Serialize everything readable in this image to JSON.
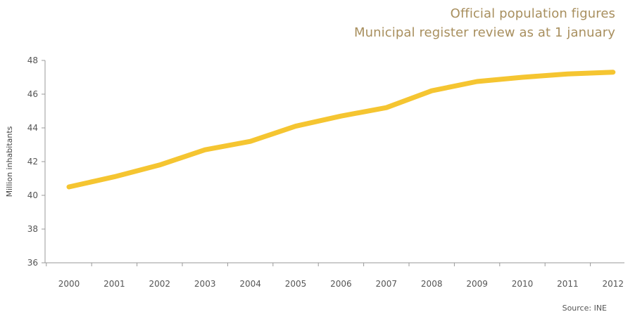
{
  "header": {
    "title_line1": "Official population figures",
    "title_line2": "Municipal register review as at 1 january"
  },
  "footer": {
    "source": "Source: INE"
  },
  "colors": {
    "line": "#f5c531",
    "title": "#a88f5e",
    "axis": "#999999",
    "text": "#555555"
  },
  "chart_data": {
    "type": "line",
    "title": "Official population figures",
    "subtitle": "Municipal register review as at 1 january",
    "xlabel": "",
    "ylabel": "Million inhabitants",
    "x": [
      "2000",
      "2001",
      "2002",
      "2003",
      "2004",
      "2005",
      "2006",
      "2007",
      "2008",
      "2009",
      "2010",
      "2011",
      "2012"
    ],
    "series": [
      {
        "values": [
          40.5,
          41.1,
          41.8,
          42.7,
          43.2,
          44.1,
          44.7,
          45.2,
          46.2,
          46.75,
          47.0,
          47.2,
          47.3
        ]
      }
    ],
    "ylim": [
      36,
      48
    ],
    "yticks": [
      36,
      38,
      40,
      42,
      44,
      46,
      48
    ],
    "grid": false,
    "legend": "none",
    "source": "Source: INE"
  }
}
